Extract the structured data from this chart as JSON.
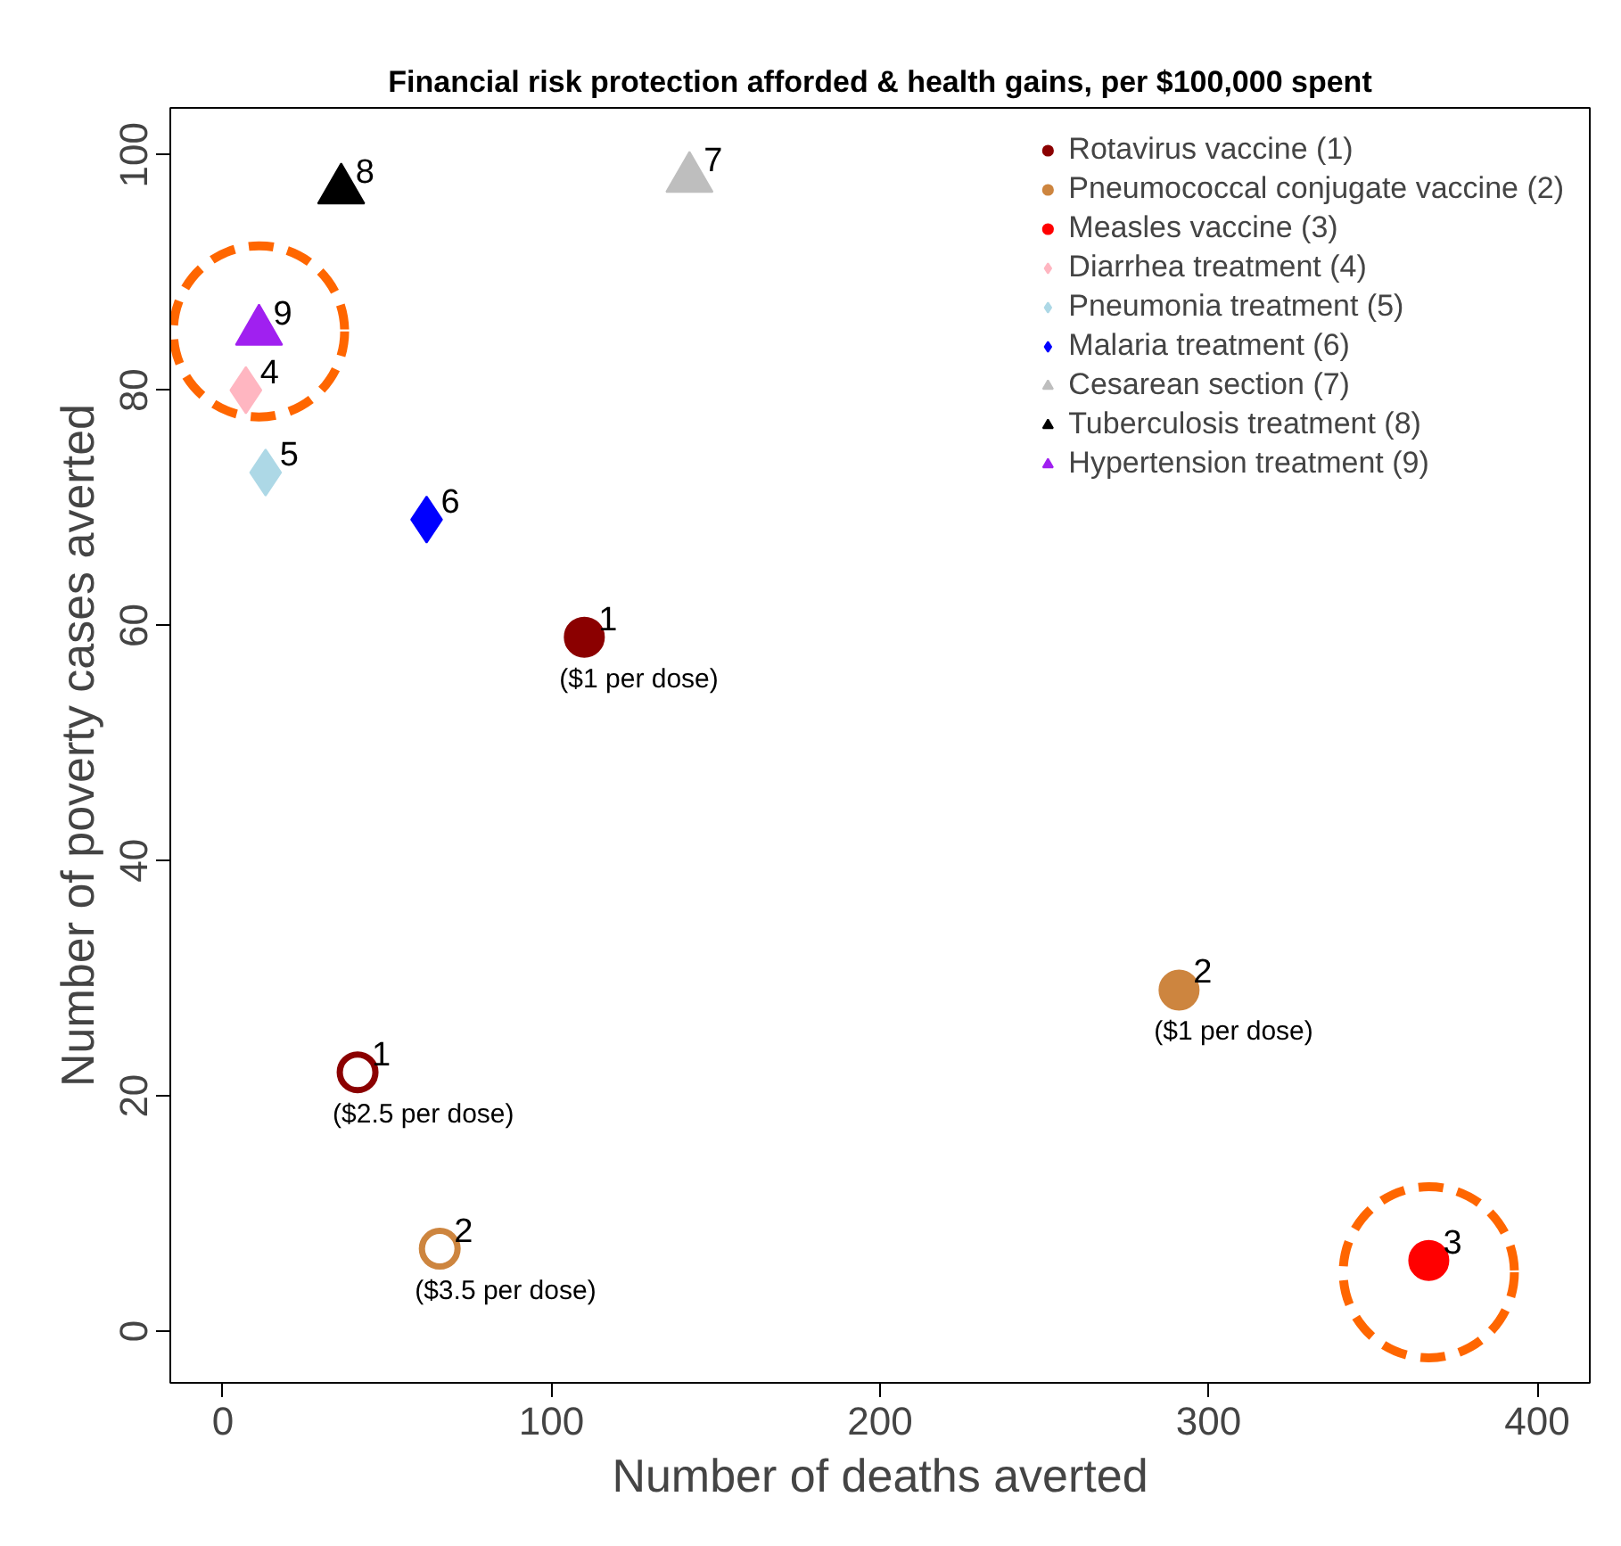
{
  "chart_data": {
    "type": "scatter",
    "title": "Financial risk protection afforded & health gains, per $100,000 spent",
    "xlabel": "Number of deaths averted",
    "ylabel": "Number of poverty cases averted",
    "xlim": [
      -16,
      416
    ],
    "ylim": [
      -4.4,
      104
    ],
    "xticks": [
      0,
      100,
      200,
      300,
      400
    ],
    "yticks": [
      0,
      20,
      40,
      60,
      80,
      100
    ],
    "grid": false,
    "legend": "top right",
    "series": [
      {
        "name": "Rotavirus vaccine (1)",
        "color": "#8b0000",
        "marker": "circle",
        "x": [
          110
        ],
        "values": [
          59
        ]
      },
      {
        "name": "Pneumococcal conjugate vaccine (2)",
        "color": "#cd853f",
        "marker": "circle",
        "x": [
          291
        ],
        "values": [
          29
        ]
      },
      {
        "name": "Measles vaccine (3)",
        "color": "#ff0000",
        "marker": "circle",
        "x": [
          367
        ],
        "values": [
          6
        ]
      },
      {
        "name": "Diarrhea treatment (4)",
        "color": "#ffb6c1",
        "marker": "diamond",
        "x": [
          7
        ],
        "values": [
          80
        ]
      },
      {
        "name": "Pneumonia treatment (5)",
        "color": "#add8e6",
        "marker": "diamond",
        "x": [
          13
        ],
        "values": [
          73
        ]
      },
      {
        "name": "Malaria treatment (6)",
        "color": "#0000ff",
        "marker": "diamond",
        "x": [
          62
        ],
        "values": [
          69
        ]
      },
      {
        "name": "Cesarean section (7)",
        "color": "#bebebe",
        "marker": "triangle",
        "x": [
          142
        ],
        "values": [
          98
        ]
      },
      {
        "name": "Tuberculosis treatment (8)",
        "color": "#000000",
        "marker": "triangle",
        "x": [
          36
        ],
        "values": [
          97
        ]
      },
      {
        "name": "Hypertension treatment (9)",
        "color": "#a020f0",
        "marker": "triangle",
        "x": [
          11
        ],
        "values": [
          85
        ]
      },
      {
        "color": "#8b0000",
        "marker": "circle",
        "x": [
          41
        ],
        "values": [
          22
        ]
      },
      {
        "color": "#cd853f",
        "marker": "circle",
        "x": [
          66
        ],
        "values": [
          7
        ]
      },
      {
        "color": "#ff6600",
        "marker": "circle",
        "line_style": "dashed",
        "x": [
          11,
          367
        ],
        "values": [
          85,
          5
        ]
      }
    ],
    "annotations": [
      {
        "text": "1",
        "x": 110,
        "y": 59
      },
      {
        "text": "2",
        "x": 291,
        "y": 29
      },
      {
        "text": "3",
        "x": 367,
        "y": 6
      },
      {
        "text": "4",
        "x": 7,
        "y": 80
      },
      {
        "text": "5",
        "x": 13,
        "y": 73
      },
      {
        "text": "6",
        "x": 62,
        "y": 69
      },
      {
        "text": "7",
        "x": 142,
        "y": 98
      },
      {
        "text": "8",
        "x": 36,
        "y": 97
      },
      {
        "text": "9",
        "x": 11,
        "y": 85
      },
      {
        "text": "1",
        "x": 41,
        "y": 22
      },
      {
        "text": "2",
        "x": 66,
        "y": 7
      },
      {
        "text": "($1 per dose)",
        "x": 110,
        "y": 59
      },
      {
        "text": "($1 per dose)",
        "x": 291,
        "y": 29
      },
      {
        "text": "($2.5 per dose)",
        "x": 41,
        "y": 22
      },
      {
        "text": "($3.5 per dose)",
        "x": 66,
        "y": 7
      }
    ]
  }
}
